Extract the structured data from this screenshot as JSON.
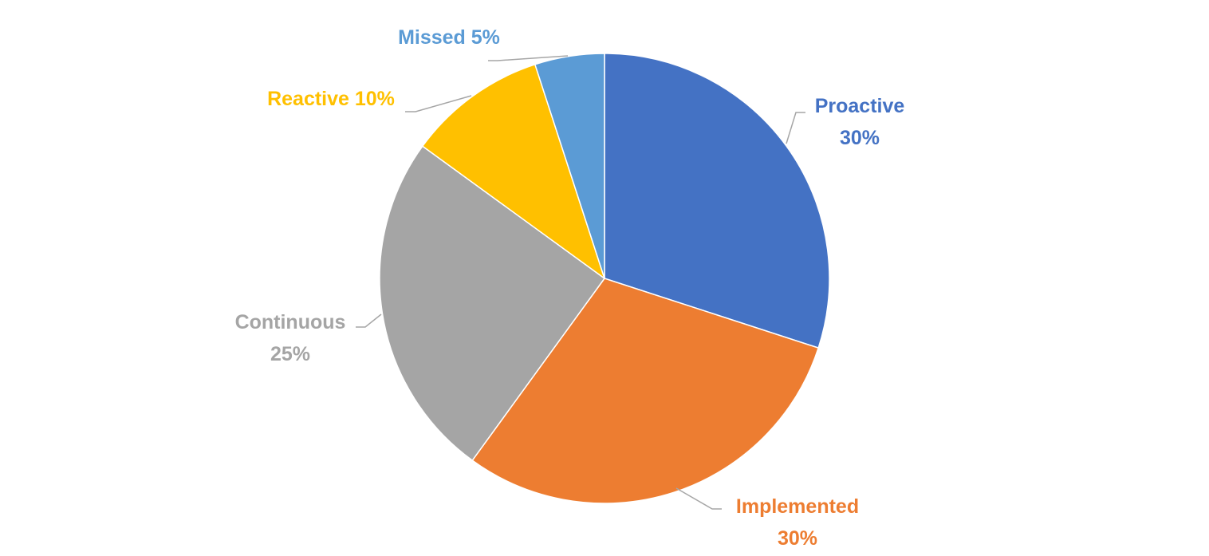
{
  "chart_data": {
    "type": "pie",
    "title": "",
    "start_angle_deg": 0,
    "direction": "clockwise",
    "legend": "none",
    "slices": [
      {
        "label": "Proactive",
        "value": 30,
        "value_label": "30%",
        "color": "#4472C4"
      },
      {
        "label": "Implemented",
        "value": 30,
        "value_label": "30%",
        "color": "#ED7D31"
      },
      {
        "label": "Continuous",
        "value": 25,
        "value_label": "25%",
        "color": "#A5A5A5"
      },
      {
        "label": "Reactive",
        "value": 10,
        "value_label": "10%",
        "color": "#FFC000"
      },
      {
        "label": "Missed",
        "value": 5,
        "value_label": "5%",
        "color": "#5B9BD5"
      }
    ],
    "leader_line_color": "#A6A6A6"
  }
}
